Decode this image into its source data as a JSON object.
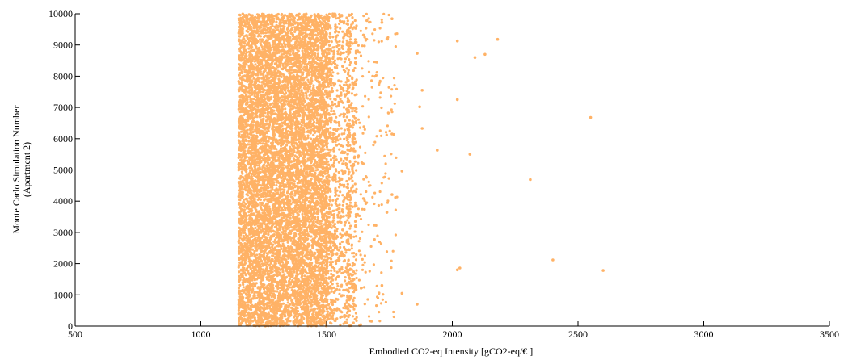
{
  "chart_data": {
    "type": "scatter",
    "title": "",
    "xlabel": "Embodied CO2-eq Intensity [gCO2-eq/€ ]",
    "ylabel_lines": [
      "Monte Carlo Simulation Number",
      "(Apartment 2)"
    ],
    "xlim": [
      500,
      3500
    ],
    "ylim": [
      0,
      10000
    ],
    "xticks": [
      500,
      1000,
      1500,
      2000,
      2500,
      3000,
      3500
    ],
    "yticks": [
      0,
      1000,
      2000,
      3000,
      4000,
      5000,
      6000,
      7000,
      8000,
      9000,
      10000
    ],
    "grid": false,
    "marker_color": "#FFB266",
    "n_points": 10000,
    "dense_range": [
      1150,
      1500
    ],
    "outliers": [
      {
        "x": 2180,
        "y": 9180
      },
      {
        "x": 2020,
        "y": 9130
      },
      {
        "x": 2090,
        "y": 8600
      },
      {
        "x": 2130,
        "y": 8700
      },
      {
        "x": 1860,
        "y": 8730
      },
      {
        "x": 1880,
        "y": 7550
      },
      {
        "x": 1870,
        "y": 7020
      },
      {
        "x": 2020,
        "y": 7250
      },
      {
        "x": 2550,
        "y": 6680
      },
      {
        "x": 1880,
        "y": 6330
      },
      {
        "x": 1760,
        "y": 6150
      },
      {
        "x": 1940,
        "y": 5630
      },
      {
        "x": 2070,
        "y": 5500
      },
      {
        "x": 2310,
        "y": 4690
      },
      {
        "x": 1800,
        "y": 4960
      },
      {
        "x": 1740,
        "y": 3640
      },
      {
        "x": 1760,
        "y": 4210
      },
      {
        "x": 2400,
        "y": 2120
      },
      {
        "x": 2600,
        "y": 1780
      },
      {
        "x": 2030,
        "y": 1860
      },
      {
        "x": 2020,
        "y": 1800
      },
      {
        "x": 1860,
        "y": 700
      },
      {
        "x": 1800,
        "y": 1050
      },
      {
        "x": 1720,
        "y": 1300
      },
      {
        "x": 1720,
        "y": 9720
      },
      {
        "x": 1760,
        "y": 9840
      },
      {
        "x": 1660,
        "y": 9780
      },
      {
        "x": 1740,
        "y": 9200
      },
      {
        "x": 1700,
        "y": 8450
      }
    ]
  }
}
